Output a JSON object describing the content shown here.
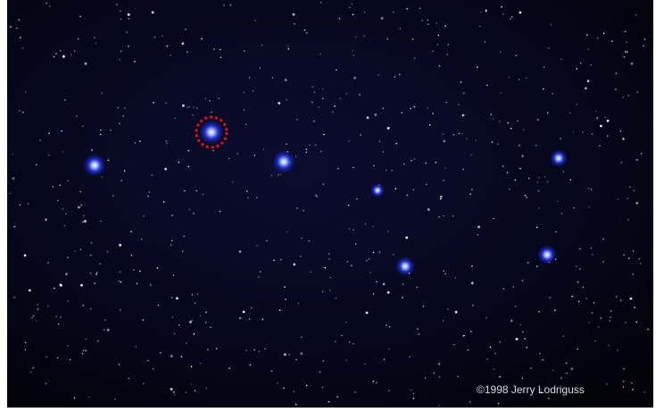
{
  "credit": "©1998 Jerry Lodriguss"
}
